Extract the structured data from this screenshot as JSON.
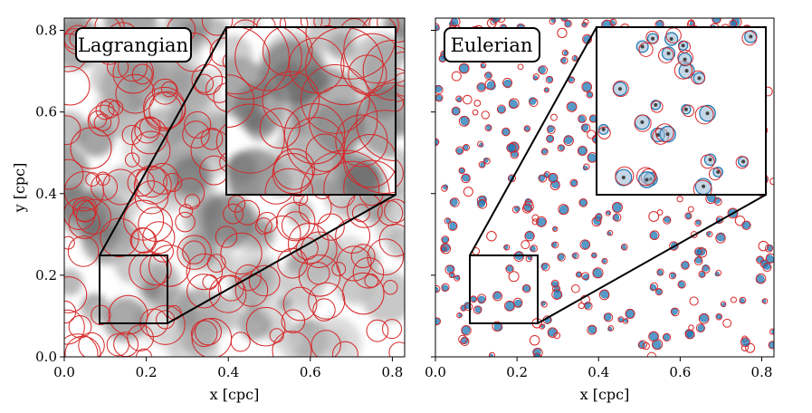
{
  "chart_data": [
    {
      "type": "scatter",
      "panel_label": "Lagrangian",
      "xlabel": "x [cpc]",
      "ylabel": "y [cpc]",
      "xlim": [
        0.0,
        0.83
      ],
      "ylim": [
        0.0,
        0.83
      ],
      "xticks": [
        "0.0",
        "0.2",
        "0.4",
        "0.6",
        "0.8"
      ],
      "yticks": [
        "0.0",
        "0.2",
        "0.4",
        "0.6",
        "0.8"
      ],
      "grid": false,
      "background": "grayscale density map",
      "marker": "open circles",
      "marker_color": "#d62728",
      "zoom_region": {
        "x": [
          0.085,
          0.25
        ],
        "y": [
          0.085,
          0.25
        ]
      },
      "points_sample": [
        {
          "x": 0.1,
          "y": 0.62,
          "r": 0.03
        },
        {
          "x": 0.14,
          "y": 0.7,
          "r": 0.025
        },
        {
          "x": 0.22,
          "y": 0.6,
          "r": 0.028
        },
        {
          "x": 0.35,
          "y": 0.52,
          "r": 0.03
        },
        {
          "x": 0.53,
          "y": 0.22,
          "r": 0.032
        },
        {
          "x": 0.66,
          "y": 0.3,
          "r": 0.03
        },
        {
          "x": 0.75,
          "y": 0.52,
          "r": 0.03
        },
        {
          "x": 0.8,
          "y": 0.14,
          "r": 0.028
        },
        {
          "x": 0.25,
          "y": 0.04,
          "r": 0.02
        },
        {
          "x": 0.45,
          "y": 0.12,
          "r": 0.025
        }
      ]
    },
    {
      "type": "scatter",
      "panel_label": "Eulerian",
      "xlabel": "x [cpc]",
      "ylabel": "",
      "xlim": [
        0.0,
        0.83
      ],
      "ylim": [
        0.0,
        0.83
      ],
      "xticks": [
        "0.0",
        "0.2",
        "0.4",
        "0.6",
        "0.8"
      ],
      "grid": false,
      "background": "white with small gray density peaks",
      "marker": "open circles (red) and filled circles (blue)",
      "marker_colors": {
        "open": "#d62728",
        "filled": "#1f77b4"
      },
      "zoom_region": {
        "x": [
          0.085,
          0.25
        ],
        "y": [
          0.085,
          0.25
        ]
      },
      "points_sample": [
        {
          "x": 0.05,
          "y": 0.73
        },
        {
          "x": 0.13,
          "y": 0.65
        },
        {
          "x": 0.32,
          "y": 0.34
        },
        {
          "x": 0.47,
          "y": 0.66
        },
        {
          "x": 0.63,
          "y": 0.55
        },
        {
          "x": 0.7,
          "y": 0.38
        },
        {
          "x": 0.77,
          "y": 0.47
        },
        {
          "x": 0.55,
          "y": 0.08
        },
        {
          "x": 0.31,
          "y": 0.12
        },
        {
          "x": 0.66,
          "y": 0.14
        }
      ]
    }
  ]
}
